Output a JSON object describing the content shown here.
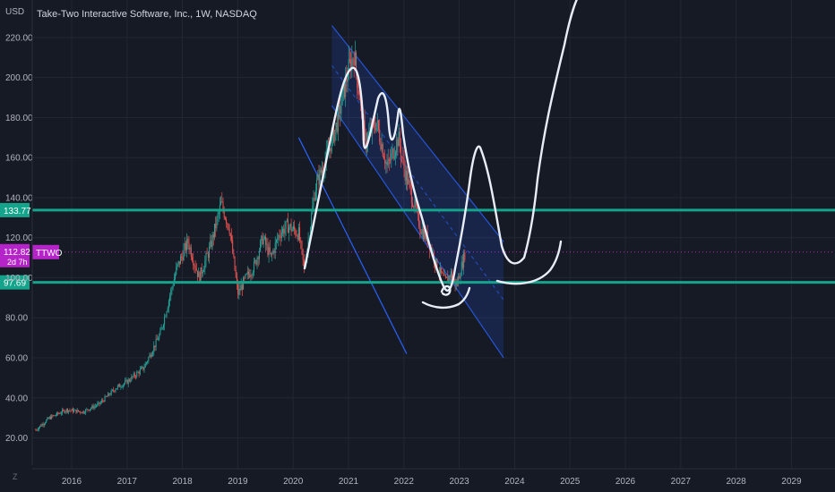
{
  "header": {
    "title": "Take-Two Interactive Software, Inc., 1W, NASDAQ",
    "currency": "USD"
  },
  "bottom_corner_glyph": "Z",
  "chart_data": {
    "type": "candlestick",
    "title": "Take-Two Interactive Software, Inc., 1W, NASDAQ",
    "ylabel": "USD",
    "ylim": [
      14,
      236
    ],
    "y_ticks": [
      "220.00",
      "200.00",
      "180.00",
      "160.00",
      "140.00",
      "120.00",
      "100.00",
      "80.00",
      "60.00",
      "40.00",
      "20.00"
    ],
    "x_ticks": [
      "2016",
      "2017",
      "2018",
      "2019",
      "2020",
      "2021",
      "2022",
      "2023",
      "2024",
      "2025",
      "2026",
      "2027",
      "2028",
      "2029"
    ],
    "x_range": [
      2015.3,
      2029.6
    ],
    "approx_price_path": [
      [
        2015.35,
        24
      ],
      [
        2015.6,
        30
      ],
      [
        2015.9,
        34
      ],
      [
        2016.2,
        33
      ],
      [
        2016.5,
        37
      ],
      [
        2016.8,
        45
      ],
      [
        2017.0,
        48
      ],
      [
        2017.3,
        55
      ],
      [
        2017.6,
        72
      ],
      [
        2017.9,
        105
      ],
      [
        2018.1,
        118
      ],
      [
        2018.3,
        100
      ],
      [
        2018.5,
        115
      ],
      [
        2018.7,
        137
      ],
      [
        2018.85,
        125
      ],
      [
        2019.0,
        92
      ],
      [
        2019.15,
        100
      ],
      [
        2019.3,
        106
      ],
      [
        2019.45,
        120
      ],
      [
        2019.6,
        110
      ],
      [
        2019.75,
        122
      ],
      [
        2019.9,
        126
      ],
      [
        2020.1,
        122
      ],
      [
        2020.2,
        104
      ],
      [
        2020.4,
        145
      ],
      [
        2020.6,
        160
      ],
      [
        2020.8,
        178
      ],
      [
        2021.0,
        204
      ],
      [
        2021.1,
        212
      ],
      [
        2021.3,
        168
      ],
      [
        2021.5,
        178
      ],
      [
        2021.7,
        155
      ],
      [
        2021.9,
        170
      ],
      [
        2022.0,
        155
      ],
      [
        2022.15,
        140
      ],
      [
        2022.3,
        125
      ],
      [
        2022.45,
        118
      ],
      [
        2022.6,
        105
      ],
      [
        2022.75,
        98
      ],
      [
        2022.85,
        102
      ],
      [
        2022.95,
        96
      ],
      [
        2023.1,
        112
      ]
    ],
    "horizontal_levels": [
      {
        "label": "133.77",
        "value": 133.77,
        "color": "#26a69a"
      },
      {
        "label": "97.69",
        "value": 97.69,
        "color": "#26a69a"
      }
    ],
    "last_price": {
      "value": 112.82,
      "label": "112.82",
      "countdown": "2d 7h",
      "symbol": "TTWO",
      "color": "#9c27b0"
    },
    "channel": {
      "upper": [
        [
          2020.7,
          226
        ],
        [
          2023.8,
          118
        ]
      ],
      "lower": [
        [
          2020.7,
          186
        ],
        [
          2023.8,
          60
        ]
      ],
      "color": "#2962ff"
    },
    "parallel_line": [
      [
        2020.1,
        170
      ],
      [
        2022.05,
        62
      ]
    ],
    "hand_drawn_projection": "white curve through the channel then sharply upward after 2024"
  },
  "colors": {
    "background": "#161a25",
    "grid": "#232733",
    "up": "#26a69a",
    "down": "#ef5350",
    "level": "#14a38b",
    "purple": "#b524c8"
  }
}
